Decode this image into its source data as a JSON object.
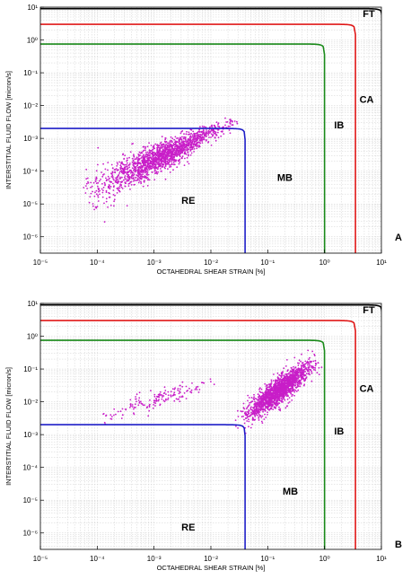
{
  "chart_data": [
    {
      "type": "scatter",
      "panel_label": "A",
      "xlabel": "OCTAHEDRAL SHEAR STRAIN [%]",
      "ylabel": "INTERSTITIAL FLUID FLOW [micron/s]",
      "xscale": "log",
      "yscale": "log",
      "xlim_exp": [
        -5,
        1
      ],
      "ylim_exp": [
        -6.5,
        1
      ],
      "x_tick_exponents": [
        -5,
        -4,
        -3,
        -2,
        -1,
        0,
        1
      ],
      "y_tick_exponents": [
        -6,
        -5,
        -4,
        -3,
        -2,
        -1,
        0,
        1
      ],
      "grid": true,
      "boundaries": [
        {
          "name": "RE",
          "color": "#1f1fc8",
          "max_strain": 0.04,
          "max_flow": 0.002
        },
        {
          "name": "IB",
          "color": "#1a8a1a",
          "max_strain": 1.0,
          "max_flow": 0.75
        },
        {
          "name": "CA",
          "color": "#e01818",
          "max_strain": 3.5,
          "max_flow": 3.0
        },
        {
          "name": "FT",
          "color": "#000000",
          "max_strain": 10.5,
          "max_flow": 9.0
        }
      ],
      "region_labels": [
        {
          "text": "RE",
          "strain": 0.004,
          "flow": 1e-05
        },
        {
          "text": "MB",
          "strain": 0.2,
          "flow": 5e-05
        },
        {
          "text": "IB",
          "strain": 1.8,
          "flow": 0.002
        },
        {
          "text": "CA",
          "strain": 5.5,
          "flow": 0.012
        },
        {
          "text": "FT",
          "strain": 6.0,
          "flow": 5.0
        }
      ],
      "scatter_clusters": [
        {
          "color": "#c81ec8",
          "count": 1700,
          "x_exp": [
            -4.1,
            -1.65
          ],
          "y_exp_start": [
            -5.2,
            -4.0
          ],
          "y_exp_end": [
            -2.65,
            -2.4
          ]
        }
      ]
    },
    {
      "type": "scatter",
      "panel_label": "B",
      "xlabel": "OCTAHEDRAL SHEAR STRAIN [%]",
      "ylabel": "INTERSTITIAL FLUID FLOW [micron/s]",
      "xscale": "log",
      "yscale": "log",
      "xlim_exp": [
        -5,
        1
      ],
      "ylim_exp": [
        -6.5,
        1
      ],
      "x_tick_exponents": [
        -5,
        -4,
        -3,
        -2,
        -1,
        0,
        1
      ],
      "y_tick_exponents": [
        -6,
        -5,
        -4,
        -3,
        -2,
        -1,
        0,
        1
      ],
      "grid": true,
      "boundaries": [
        {
          "name": "RE",
          "color": "#1f1fc8",
          "max_strain": 0.04,
          "max_flow": 0.002
        },
        {
          "name": "IB",
          "color": "#1a8a1a",
          "max_strain": 1.0,
          "max_flow": 0.75
        },
        {
          "name": "CA",
          "color": "#e01818",
          "max_strain": 3.5,
          "max_flow": 3.0
        },
        {
          "name": "FT",
          "color": "#000000",
          "max_strain": 10.5,
          "max_flow": 9.0
        }
      ],
      "region_labels": [
        {
          "text": "RE",
          "strain": 0.004,
          "flow": 1.2e-06
        },
        {
          "text": "MB",
          "strain": 0.25,
          "flow": 1.5e-05
        },
        {
          "text": "IB",
          "strain": 1.8,
          "flow": 0.001
        },
        {
          "text": "CA",
          "strain": 5.5,
          "flow": 0.02
        },
        {
          "text": "FT",
          "strain": 6.0,
          "flow": 5.0
        }
      ],
      "scatter_clusters": [
        {
          "color": "#c81ec8",
          "count": 1700,
          "x_exp": [
            -1.4,
            -0.2
          ],
          "y_exp_start": [
            -2.8,
            -2.2
          ],
          "y_exp_end": [
            -1.1,
            -0.5
          ]
        },
        {
          "color": "#c81ec8",
          "count": 160,
          "x_exp": [
            -3.9,
            -2.0
          ],
          "y_exp_start": [
            -2.7,
            -2.2
          ],
          "y_exp_end": [
            -1.6,
            -1.2
          ]
        }
      ]
    }
  ]
}
